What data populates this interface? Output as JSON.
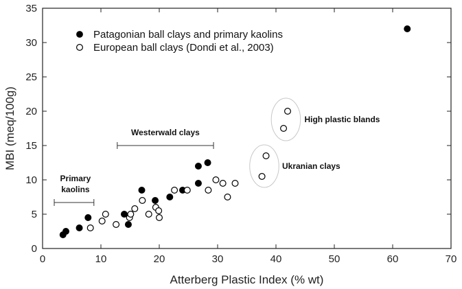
{
  "chart_data": {
    "type": "scatter",
    "title": "",
    "xlabel": "Atterberg Plastic Index (% wt)",
    "ylabel": "MBI (meq/100g)",
    "xlim": [
      0,
      70
    ],
    "ylim": [
      0,
      35
    ],
    "xticks": [
      0,
      10,
      20,
      30,
      40,
      50,
      60,
      70
    ],
    "yticks": [
      0,
      5,
      10,
      15,
      20,
      25,
      30,
      35
    ],
    "grid": false,
    "legend_position": "top-left",
    "series": [
      {
        "name": "Patagonian ball clays and primary kaolins",
        "marker": "filled-circle",
        "color": "#000000",
        "points": [
          [
            3.5,
            2.0
          ],
          [
            4.0,
            2.5
          ],
          [
            6.3,
            3.0
          ],
          [
            7.8,
            4.5
          ],
          [
            14.0,
            5.0
          ],
          [
            14.7,
            3.5
          ],
          [
            17.0,
            8.5
          ],
          [
            19.3,
            7.0
          ],
          [
            21.8,
            7.5
          ],
          [
            24.0,
            8.5
          ],
          [
            26.7,
            12.0
          ],
          [
            26.7,
            9.5
          ],
          [
            28.3,
            12.5
          ],
          [
            62.5,
            32.0
          ]
        ]
      },
      {
        "name": "European ball clays (Dondi et al., 2003)",
        "marker": "open-circle",
        "color": "#000000",
        "points": [
          [
            8.2,
            3.0
          ],
          [
            10.2,
            4.0
          ],
          [
            10.8,
            5.0
          ],
          [
            12.6,
            3.5
          ],
          [
            14.9,
            4.5
          ],
          [
            15.1,
            5.0
          ],
          [
            15.8,
            5.8
          ],
          [
            17.1,
            7.0
          ],
          [
            18.2,
            5.0
          ],
          [
            19.4,
            6.0
          ],
          [
            19.9,
            5.5
          ],
          [
            20.0,
            4.5
          ],
          [
            22.6,
            8.5
          ],
          [
            24.8,
            8.5
          ],
          [
            28.4,
            8.5
          ],
          [
            29.7,
            10.0
          ],
          [
            30.9,
            9.5
          ],
          [
            31.7,
            7.5
          ],
          [
            33.0,
            9.5
          ],
          [
            37.6,
            10.5
          ],
          [
            38.3,
            13.5
          ],
          [
            41.3,
            17.5
          ],
          [
            42.0,
            20.0
          ]
        ]
      }
    ],
    "annotations": {
      "westerwald": {
        "label": "Westerwald clays",
        "x_range": [
          12.8,
          29.3
        ],
        "y": 15.0
      },
      "primary_kaolins": {
        "label_line1": "Primary",
        "label_line2": "kaolins",
        "x_range": [
          2.0,
          8.8
        ],
        "y": 6.7
      },
      "high_plastic": {
        "label": "High plastic blands",
        "ellipse_center": [
          41.7,
          18.8
        ],
        "ellipse_radii": [
          2.5,
          3.1
        ]
      },
      "ukranian": {
        "label": "Ukranian clays",
        "ellipse_center": [
          38.0,
          12.0
        ],
        "ellipse_radii": [
          2.5,
          3.1
        ]
      }
    }
  }
}
